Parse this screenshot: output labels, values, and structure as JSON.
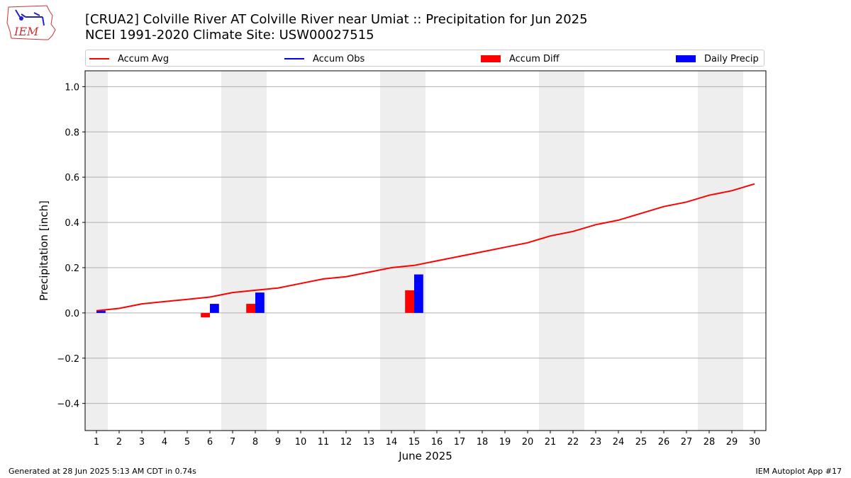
{
  "header": {
    "title_line1": "[CRUA2] Colville River  AT Colville River near Umiat :: Precipitation for Jun 2025",
    "title_line2": "NCEI 1991-2020 Climate Site: USW00027515",
    "logo_text": "IEM"
  },
  "legend": [
    {
      "label": "Accum Avg",
      "kind": "line",
      "color": "#ff0000"
    },
    {
      "label": "Accum Obs",
      "kind": "line",
      "color": "#0000ff"
    },
    {
      "label": "Accum Diff",
      "kind": "box",
      "color": "#ff0000"
    },
    {
      "label": "Daily Precip",
      "kind": "box",
      "color": "#0000ff"
    }
  ],
  "footer": {
    "left": "Generated at 28 Jun 2025 5:13 AM CDT in 0.74s",
    "right": "IEM Autoplot App #17"
  },
  "chart_data": {
    "type": "bar",
    "xlabel": "June 2025",
    "ylabel": "Precipitation [inch]",
    "xlim": [
      0.5,
      30.5
    ],
    "ylim": [
      -0.52,
      1.07
    ],
    "yticks": [
      -0.4,
      -0.2,
      0.0,
      0.2,
      0.4,
      0.6,
      0.8,
      1.0
    ],
    "ytick_labels": [
      "−0.4",
      "−0.2",
      "0.0",
      "0.2",
      "0.4",
      "0.6",
      "0.8",
      "1.0"
    ],
    "xtick_labels": [
      "1",
      "2",
      "3",
      "4",
      "5",
      "6",
      "7",
      "8",
      "9",
      "10",
      "11",
      "12",
      "13",
      "14",
      "15",
      "16",
      "17",
      "18",
      "19",
      "20",
      "21",
      "22",
      "23",
      "24",
      "25",
      "26",
      "27",
      "28",
      "29",
      "30"
    ],
    "grid": "horizontal",
    "weekend_shading": [
      [
        0.5,
        1.5
      ],
      [
        6.5,
        8.5
      ],
      [
        13.5,
        15.5
      ],
      [
        20.5,
        22.5
      ],
      [
        27.5,
        29.5
      ]
    ],
    "accum_avg": {
      "color": "#ff0000",
      "x": [
        1,
        2,
        3,
        4,
        5,
        6,
        7,
        8,
        9,
        10,
        11,
        12,
        13,
        14,
        15,
        16,
        17,
        18,
        19,
        20,
        21,
        22,
        23,
        24,
        25,
        26,
        27,
        28,
        29,
        30
      ],
      "y": [
        0.01,
        0.02,
        0.04,
        0.05,
        0.06,
        0.07,
        0.09,
        0.1,
        0.11,
        0.13,
        0.15,
        0.16,
        0.18,
        0.2,
        0.21,
        0.23,
        0.25,
        0.27,
        0.29,
        0.31,
        0.34,
        0.36,
        0.39,
        0.41,
        0.44,
        0.47,
        0.49,
        0.52,
        0.54,
        0.57
      ]
    },
    "accum_obs": {
      "color": "#0000ff",
      "x": [
        1
      ],
      "y": [
        0.01
      ]
    },
    "accum_diff": {
      "color": "#ff0000",
      "x": [
        1,
        6,
        8,
        15
      ],
      "y": [
        0.0,
        -0.02,
        0.04,
        0.1
      ]
    },
    "daily_precip": {
      "color": "#0000ff",
      "x": [
        1,
        6,
        8,
        15
      ],
      "y": [
        0.01,
        0.04,
        0.09,
        0.17
      ]
    }
  }
}
